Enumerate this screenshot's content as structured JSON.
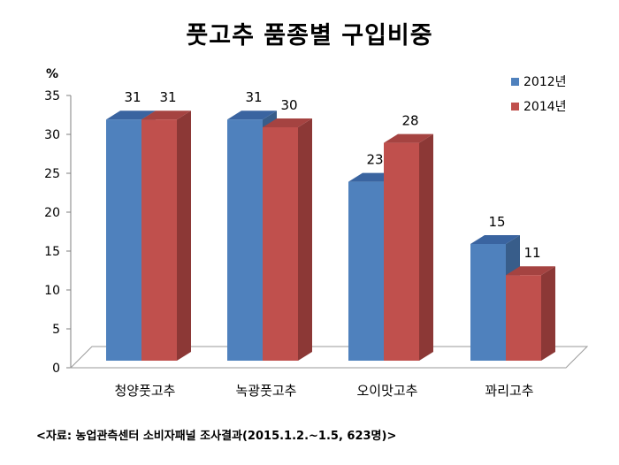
{
  "title": "풋고추 품종별 구입비중",
  "source": "<자료: 농업관측센터 소비자패널 조사결과(2015.1.2.~1.5, 623명)>",
  "chart_data": {
    "type": "bar",
    "title": "풋고추 품종별 구입비중",
    "unit": "%",
    "categories": [
      "청양풋고추",
      "녹광풋고추",
      "오이맛고추",
      "꽈리고추"
    ],
    "series": [
      {
        "name": "2012년",
        "values": [
          31,
          31,
          23,
          15
        ],
        "color": "#4F81BD",
        "side": "#385D8A",
        "top": "#3A64A0"
      },
      {
        "name": "2014년",
        "values": [
          31,
          30,
          28,
          11
        ],
        "color": "#C0504D",
        "side": "#8C3836",
        "top": "#A54341"
      }
    ],
    "ylim": [
      0,
      35
    ],
    "yticks": [
      0,
      5,
      10,
      15,
      20,
      25,
      30,
      35
    ],
    "legend_position": "top-right",
    "grid": false
  }
}
